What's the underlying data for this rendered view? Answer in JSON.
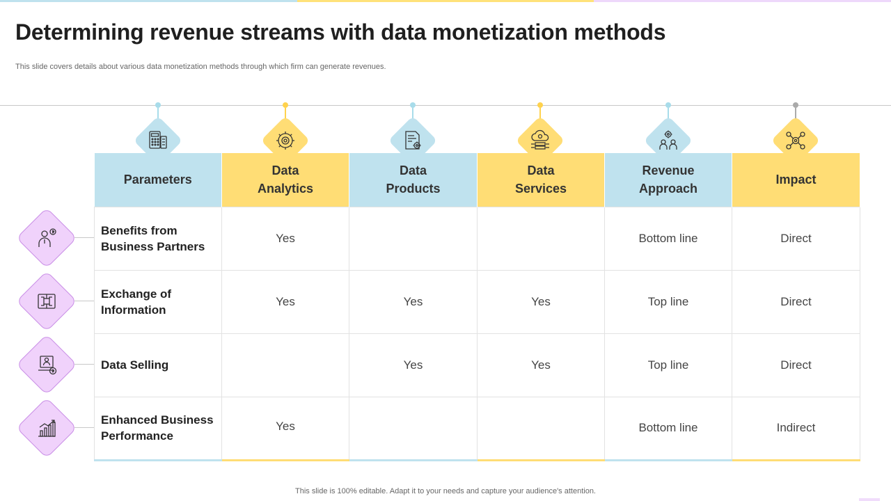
{
  "colors": {
    "blue": "#bfe2ee",
    "yellow": "#ffdd75",
    "purple_fill": "#f0d2fb",
    "purple_line": "#c98ee6",
    "blue_dot": "#a8dcea",
    "yellow_dot": "#ffd24d",
    "gray_dot": "#aaaaaa"
  },
  "title": "Determining revenue streams with data monetization methods",
  "subtitle": "This slide covers details about various data monetization methods through which firm can generate revenues.",
  "columns": [
    {
      "label_line1": "Parameters",
      "label_line2": "",
      "color": "blue",
      "icon": "calculator-icon"
    },
    {
      "label_line1": "Data",
      "label_line2": "Analytics",
      "color": "yellow",
      "icon": "gear-icon"
    },
    {
      "label_line1": "Data",
      "label_line2": "Products",
      "color": "blue",
      "icon": "document-gear-icon"
    },
    {
      "label_line1": "Data",
      "label_line2": "Services",
      "color": "yellow",
      "icon": "cloud-server-icon"
    },
    {
      "label_line1": "Revenue",
      "label_line2": "Approach",
      "color": "blue",
      "icon": "team-gear-icon"
    },
    {
      "label_line1": "Impact",
      "label_line2": "",
      "color": "yellow",
      "icon": "network-money-icon"
    }
  ],
  "rows": [
    {
      "param_line1": "Benefits from",
      "param_line2": "Business Partners",
      "analytics": "Yes",
      "products": "",
      "services": "",
      "approach": "Bottom line",
      "impact": "Direct",
      "icon": "businessman-money-icon"
    },
    {
      "param_line1": "Exchange of",
      "param_line2": "Information",
      "analytics": "Yes",
      "products": "Yes",
      "services": "Yes",
      "approach": "Top line",
      "impact": "Direct",
      "icon": "circuit-exchange-icon"
    },
    {
      "param_line1": "Data Selling",
      "param_line2": "",
      "analytics": "",
      "products": "Yes",
      "services": "Yes",
      "approach": "Top line",
      "impact": "Direct",
      "icon": "laptop-dollar-icon"
    },
    {
      "param_line1": "Enhanced Business",
      "param_line2": "Performance",
      "analytics": "Yes",
      "products": "",
      "services": "",
      "approach": "Bottom line",
      "impact": "Indirect",
      "icon": "growth-chart-icon"
    }
  ],
  "footer": "This slide is 100% editable. Adapt it to your needs and capture your audience's attention."
}
